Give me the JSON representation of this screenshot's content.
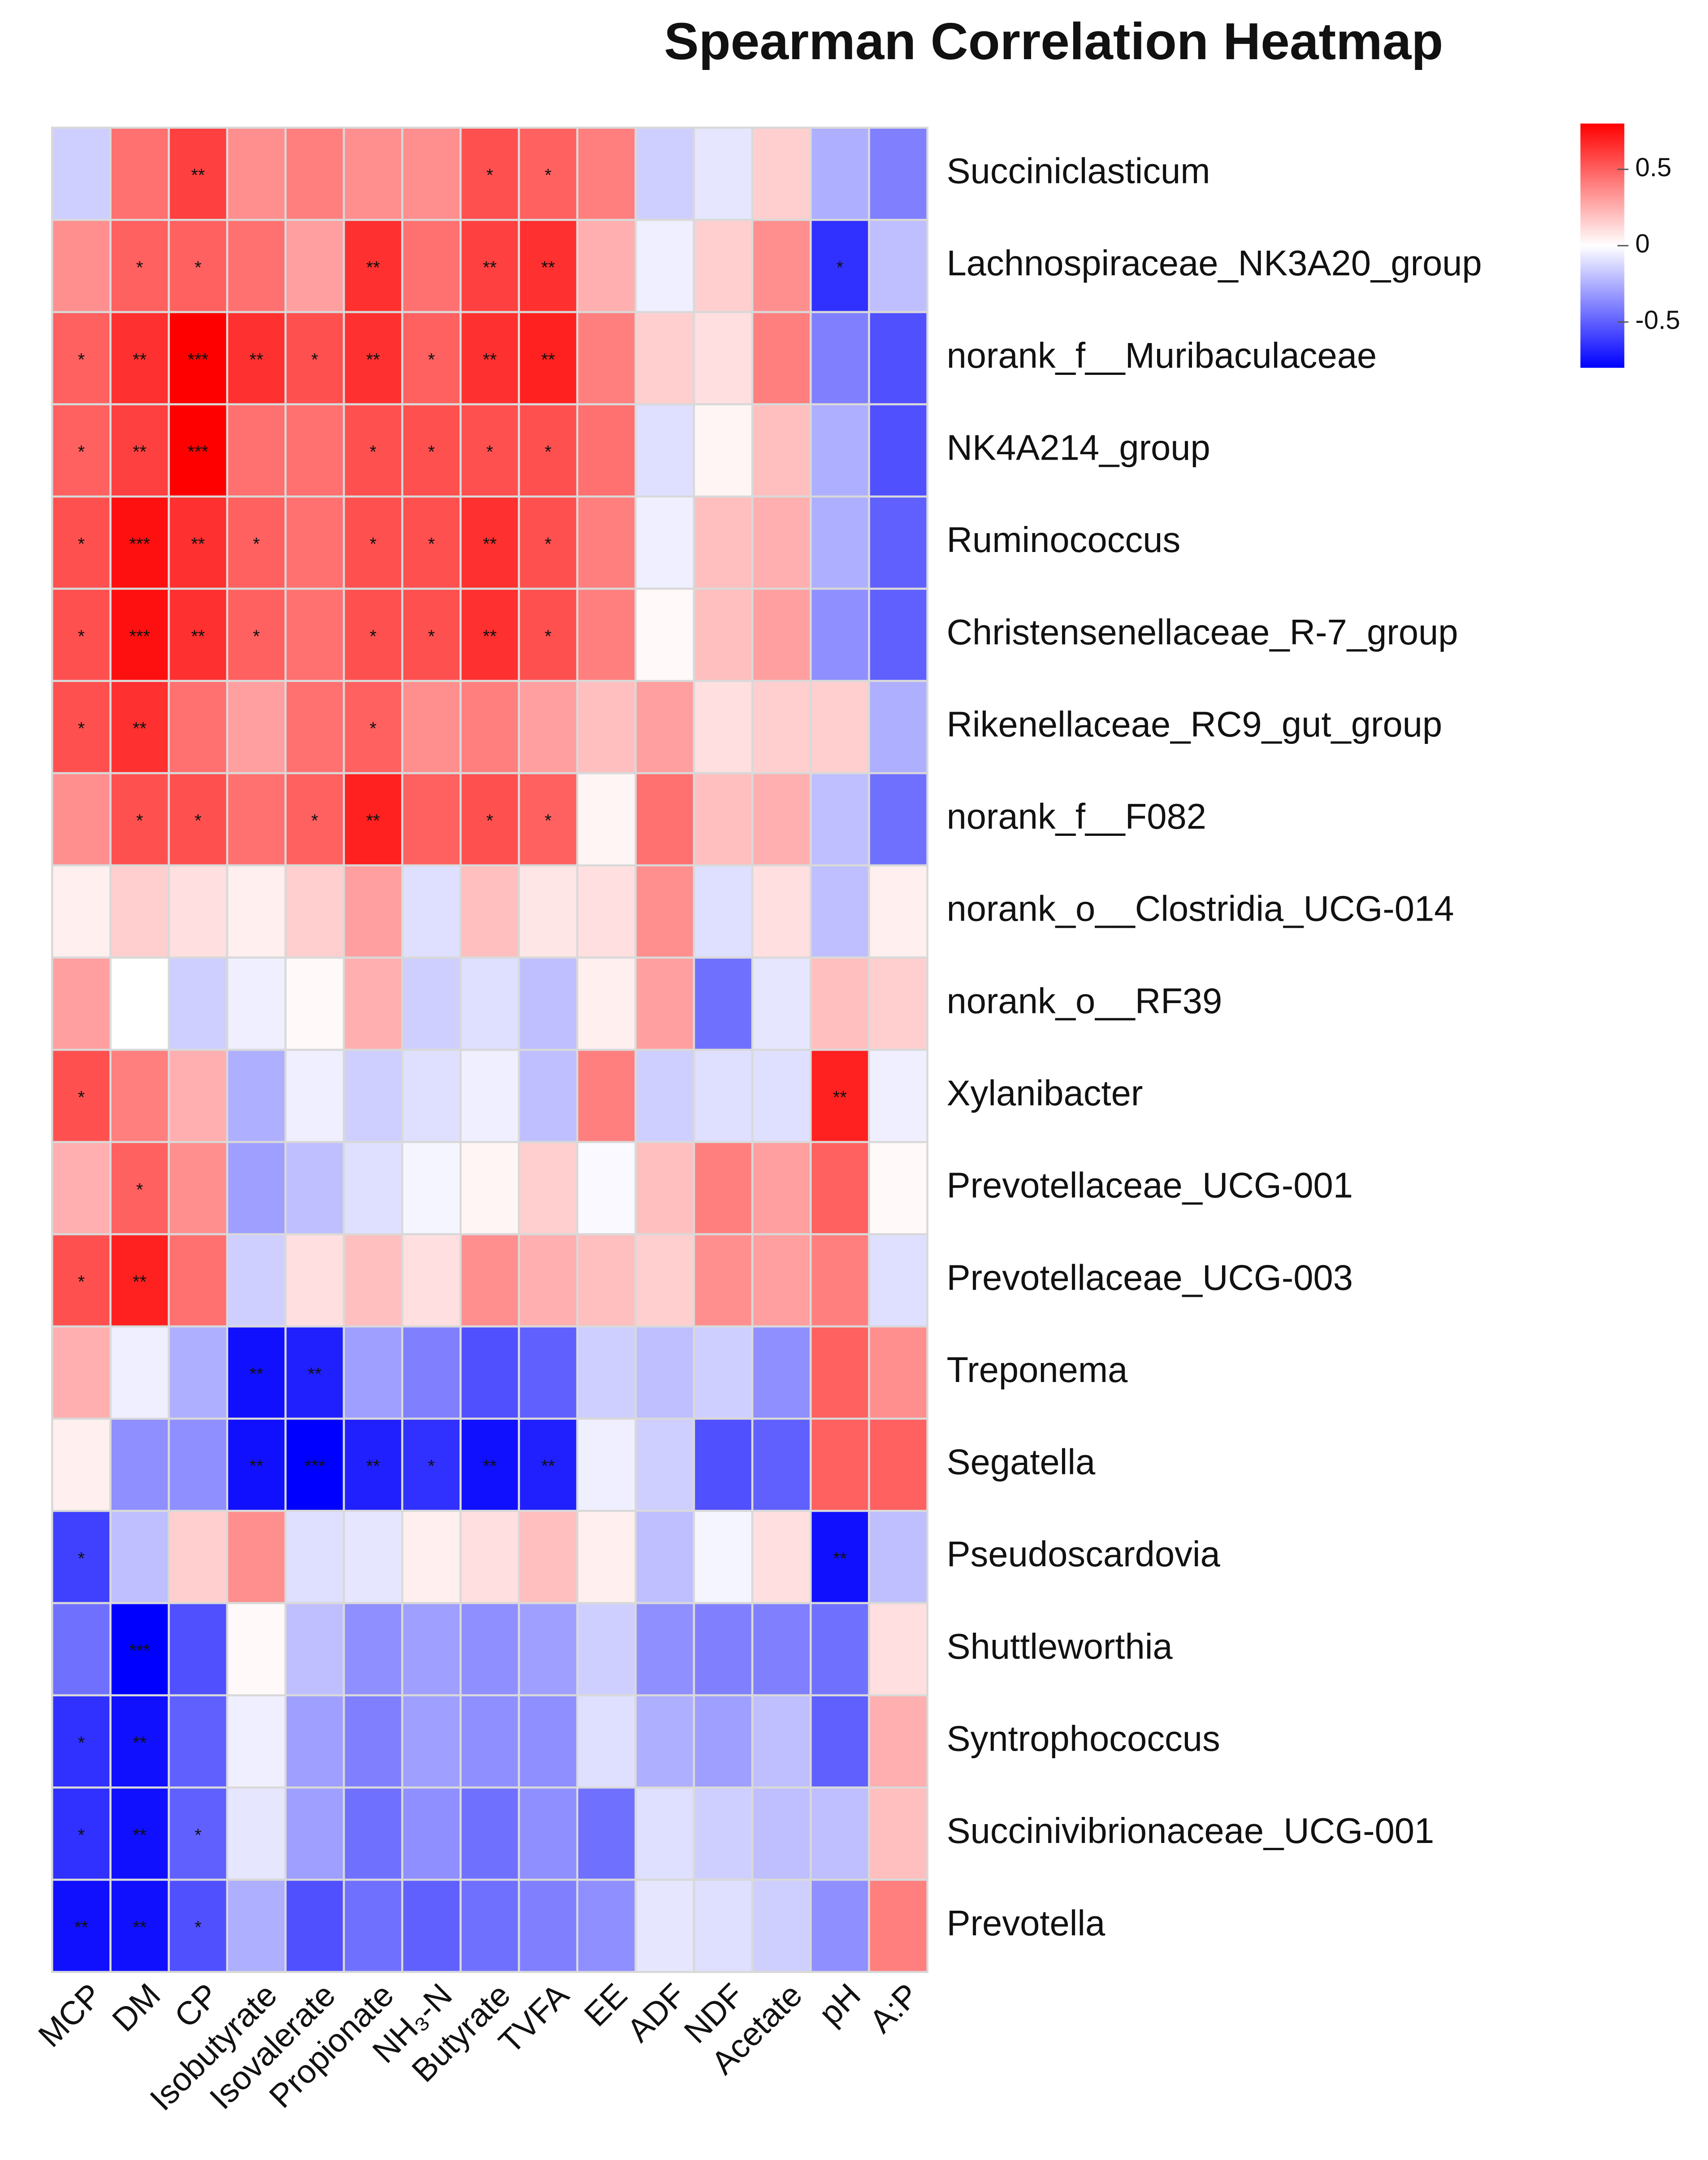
{
  "chart_data": {
    "type": "heatmap",
    "title": "Spearman Correlation Heatmap",
    "x": [
      "MCP",
      "DM",
      "CP",
      "Isobutyrate",
      "Isovalerate",
      "Propionate",
      "NH₃-N",
      "Butyrate",
      "TVFA",
      "EE",
      "ADF",
      "NDF",
      "Acetate",
      "pH",
      "A:P"
    ],
    "y": [
      "Succiniclasticum",
      "Lachnospiraceae_NK3A20_group",
      "norank_f__Muribaculaceae",
      "NK4A214_group",
      "Ruminococcus",
      "Christensenellaceae_R-7_group",
      "Rikenellaceae_RC9_gut_group",
      "norank_f__F082",
      "norank_o__Clostridia_UCG-014",
      "norank_o__RF39",
      "Xylanibacter",
      "Prevotellaceae_UCG-001",
      "Prevotellaceae_UCG-003",
      "Treponema",
      "Segatella",
      "Pseudoscardovia",
      "Shuttleworthia",
      "Syntrophococcus",
      "Succinivibrionaceae_UCG-001",
      "Prevotella"
    ],
    "values": [
      [
        -0.15,
        0.45,
        0.6,
        0.35,
        0.4,
        0.35,
        0.35,
        0.55,
        0.5,
        0.4,
        -0.15,
        -0.08,
        0.15,
        -0.25,
        -0.4
      ],
      [
        0.35,
        0.5,
        0.5,
        0.45,
        0.3,
        0.65,
        0.45,
        0.6,
        0.65,
        0.25,
        -0.05,
        0.15,
        0.35,
        -0.65,
        -0.2
      ],
      [
        0.5,
        0.65,
        0.8,
        0.65,
        0.55,
        0.65,
        0.5,
        0.65,
        0.7,
        0.4,
        0.15,
        0.1,
        0.4,
        -0.4,
        -0.55
      ],
      [
        0.5,
        0.6,
        0.8,
        0.45,
        0.45,
        0.55,
        0.55,
        0.55,
        0.55,
        0.45,
        -0.1,
        0.03,
        0.2,
        -0.25,
        -0.55
      ],
      [
        0.55,
        0.75,
        0.65,
        0.5,
        0.45,
        0.55,
        0.55,
        0.65,
        0.55,
        0.4,
        -0.05,
        0.2,
        0.25,
        -0.25,
        -0.5
      ],
      [
        0.55,
        0.75,
        0.65,
        0.5,
        0.45,
        0.55,
        0.55,
        0.65,
        0.55,
        0.4,
        0.02,
        0.2,
        0.3,
        -0.35,
        -0.5
      ],
      [
        0.55,
        0.65,
        0.45,
        0.3,
        0.45,
        0.5,
        0.35,
        0.4,
        0.3,
        0.2,
        0.3,
        0.1,
        0.15,
        0.15,
        -0.25
      ],
      [
        0.35,
        0.55,
        0.55,
        0.45,
        0.5,
        0.7,
        0.5,
        0.55,
        0.5,
        0.03,
        0.45,
        0.2,
        0.25,
        -0.2,
        -0.45
      ],
      [
        0.05,
        0.15,
        0.1,
        0.05,
        0.15,
        0.3,
        -0.1,
        0.2,
        0.08,
        0.1,
        0.35,
        -0.1,
        0.1,
        -0.2,
        0.05
      ],
      [
        0.3,
        0.0,
        -0.15,
        -0.05,
        0.02,
        0.25,
        -0.15,
        -0.1,
        -0.2,
        0.05,
        0.3,
        -0.45,
        -0.08,
        0.2,
        0.15
      ],
      [
        0.55,
        0.4,
        0.25,
        -0.25,
        -0.05,
        -0.15,
        -0.1,
        -0.05,
        -0.2,
        0.4,
        -0.15,
        -0.1,
        -0.1,
        0.7,
        -0.05
      ],
      [
        0.25,
        0.5,
        0.35,
        -0.3,
        -0.2,
        -0.1,
        -0.03,
        0.03,
        0.15,
        -0.02,
        0.2,
        0.4,
        0.3,
        0.5,
        0.02
      ],
      [
        0.55,
        0.7,
        0.45,
        -0.15,
        0.1,
        0.2,
        0.1,
        0.35,
        0.25,
        0.2,
        0.15,
        0.35,
        0.3,
        0.4,
        -0.1
      ],
      [
        0.25,
        -0.05,
        -0.25,
        -0.75,
        -0.7,
        -0.3,
        -0.4,
        -0.55,
        -0.5,
        -0.15,
        -0.2,
        -0.15,
        -0.35,
        0.5,
        0.35
      ],
      [
        0.05,
        -0.35,
        -0.35,
        -0.75,
        -0.8,
        -0.7,
        -0.65,
        -0.75,
        -0.7,
        -0.05,
        -0.15,
        -0.55,
        -0.5,
        0.5,
        0.5
      ],
      [
        -0.6,
        -0.2,
        0.15,
        0.35,
        -0.1,
        -0.08,
        0.05,
        0.1,
        0.2,
        0.05,
        -0.2,
        -0.03,
        0.1,
        -0.75,
        -0.2
      ],
      [
        -0.45,
        -0.8,
        -0.55,
        0.02,
        -0.2,
        -0.35,
        -0.3,
        -0.35,
        -0.3,
        -0.15,
        -0.35,
        -0.4,
        -0.4,
        -0.45,
        0.1
      ],
      [
        -0.65,
        -0.75,
        -0.5,
        -0.05,
        -0.3,
        -0.4,
        -0.3,
        -0.35,
        -0.35,
        -0.1,
        -0.25,
        -0.3,
        -0.2,
        -0.5,
        0.25
      ],
      [
        -0.65,
        -0.75,
        -0.5,
        -0.08,
        -0.3,
        -0.45,
        -0.35,
        -0.45,
        -0.35,
        -0.45,
        -0.1,
        -0.15,
        -0.2,
        -0.2,
        0.2
      ],
      [
        -0.75,
        -0.75,
        -0.55,
        -0.25,
        -0.55,
        -0.45,
        -0.5,
        -0.45,
        -0.4,
        -0.35,
        -0.08,
        -0.1,
        -0.15,
        -0.35,
        0.4
      ]
    ],
    "stars": [
      [
        null,
        null,
        "**",
        null,
        null,
        null,
        null,
        "*",
        "*",
        null,
        null,
        null,
        null,
        null,
        null
      ],
      [
        null,
        "*",
        "*",
        null,
        null,
        "**",
        null,
        "**",
        "**",
        null,
        null,
        null,
        null,
        "*",
        null
      ],
      [
        "*",
        "**",
        "***",
        "**",
        "*",
        "**",
        "*",
        "**",
        "**",
        null,
        null,
        null,
        null,
        null,
        null
      ],
      [
        "*",
        "**",
        "***",
        null,
        null,
        "*",
        "*",
        "*",
        "*",
        null,
        null,
        null,
        null,
        null,
        null
      ],
      [
        "*",
        "***",
        "**",
        "*",
        null,
        "*",
        "*",
        "**",
        "*",
        null,
        null,
        null,
        null,
        null,
        null
      ],
      [
        "*",
        "***",
        "**",
        "*",
        null,
        "*",
        "*",
        "**",
        "*",
        null,
        null,
        null,
        null,
        null,
        null
      ],
      [
        "*",
        "**",
        null,
        null,
        null,
        "*",
        null,
        null,
        null,
        null,
        null,
        null,
        null,
        null,
        null
      ],
      [
        null,
        "*",
        "*",
        null,
        "*",
        "**",
        null,
        "*",
        "*",
        null,
        null,
        null,
        null,
        null,
        null
      ],
      [
        null,
        null,
        null,
        null,
        null,
        null,
        null,
        null,
        null,
        null,
        null,
        null,
        null,
        null,
        null
      ],
      [
        null,
        null,
        null,
        null,
        null,
        null,
        null,
        null,
        null,
        null,
        null,
        null,
        null,
        null,
        null
      ],
      [
        "*",
        null,
        null,
        null,
        null,
        null,
        null,
        null,
        null,
        null,
        null,
        null,
        null,
        "**",
        null
      ],
      [
        null,
        "*",
        null,
        null,
        null,
        null,
        null,
        null,
        null,
        null,
        null,
        null,
        null,
        null,
        null
      ],
      [
        "*",
        "**",
        null,
        null,
        null,
        null,
        null,
        null,
        null,
        null,
        null,
        null,
        null,
        null,
        null
      ],
      [
        null,
        null,
        null,
        "**",
        "**",
        null,
        null,
        null,
        null,
        null,
        null,
        null,
        null,
        null,
        null
      ],
      [
        null,
        null,
        null,
        "**",
        "***",
        "**",
        "*",
        "**",
        "**",
        null,
        null,
        null,
        null,
        null,
        null
      ],
      [
        "*",
        null,
        null,
        null,
        null,
        null,
        null,
        null,
        null,
        null,
        null,
        null,
        null,
        "**",
        null
      ],
      [
        null,
        "***",
        null,
        null,
        null,
        null,
        null,
        null,
        null,
        null,
        null,
        null,
        null,
        null,
        null
      ],
      [
        "*",
        "**",
        null,
        null,
        null,
        null,
        null,
        null,
        null,
        null,
        null,
        null,
        null,
        null,
        null
      ],
      [
        "*",
        "**",
        "*",
        null,
        null,
        null,
        null,
        null,
        null,
        null,
        null,
        null,
        null,
        null,
        null
      ],
      [
        "**",
        "**",
        "*",
        null,
        null,
        null,
        null,
        null,
        null,
        null,
        null,
        null,
        null,
        null,
        null
      ]
    ],
    "zlim": [
      -0.8,
      0.8
    ],
    "zticks": [
      -0.5,
      0,
      0.5
    ],
    "colors": [
      "#0000ff",
      "#ffffff",
      "#ff0000"
    ]
  }
}
